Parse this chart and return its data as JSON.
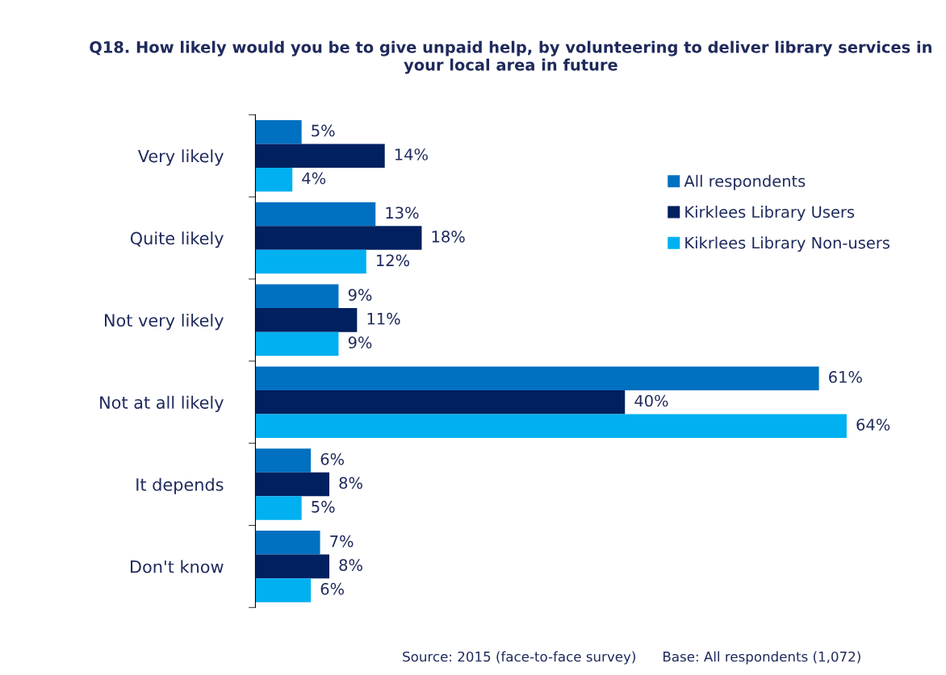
{
  "chart_data": {
    "type": "bar",
    "orientation": "horizontal",
    "title": "Q18. How likely would you be to give unpaid help, by volunteering to deliver library services in your local area in future",
    "categories": [
      "Very likely",
      "Quite likely",
      "Not very likely",
      "Not at all likely",
      "It depends",
      "Don't know"
    ],
    "series": [
      {
        "name": "All respondents",
        "color": "#0070c0",
        "values": [
          5,
          13,
          9,
          61,
          6,
          7
        ],
        "value_labels": [
          "5%",
          "13%",
          "9%",
          "61%",
          "6%",
          "7%"
        ]
      },
      {
        "name": "Kirklees Library Users",
        "color": "#002060",
        "values": [
          14,
          18,
          11,
          40,
          8,
          8
        ],
        "value_labels": [
          "14%",
          "18%",
          "11%",
          "40%",
          "8%",
          "8%"
        ]
      },
      {
        "name": "Kikrlees Library Non-users",
        "color": "#00b0f0",
        "values": [
          4,
          12,
          9,
          64,
          5,
          6
        ],
        "value_labels": [
          "4%",
          "12%",
          "9%",
          "64%",
          "5%",
          "6%"
        ]
      }
    ],
    "legend": "right",
    "grid": false,
    "annotations": [
      "Source: 2015 (face-to-face survey)",
      "Base: All respondents (1,072)"
    ]
  }
}
